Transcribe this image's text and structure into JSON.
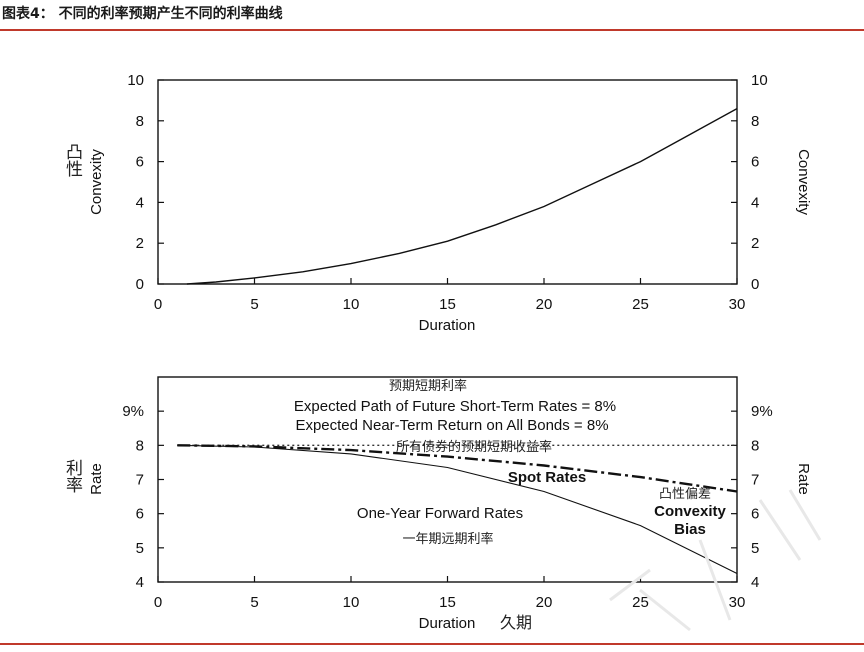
{
  "figure": {
    "title": "图表4：  不同的利率预期产生不同的利率曲线"
  },
  "chart_data": [
    {
      "type": "line",
      "xlabel": "Duration",
      "ylabel_cn": "凸性",
      "ylabel": "Convexity",
      "ylabel_right": "Convexity",
      "xlim": [
        0,
        30
      ],
      "ylim": [
        0,
        10
      ],
      "x_ticks": [
        0,
        5,
        10,
        15,
        20,
        25,
        30
      ],
      "y_ticks": [
        "0",
        "2",
        "4",
        "6",
        "8",
        "10"
      ],
      "y_ticks_right": [
        "0",
        "2",
        "4",
        "6",
        "8",
        "10"
      ],
      "series": [
        {
          "x": [
            1.5,
            3,
            5,
            7.5,
            10,
            12.5,
            15,
            17.5,
            20,
            22.5,
            25,
            27.5,
            30
          ],
          "y": [
            0.0,
            0.1,
            0.3,
            0.6,
            1.0,
            1.5,
            2.1,
            2.9,
            3.8,
            4.9,
            6.0,
            7.3,
            8.6
          ]
        }
      ]
    },
    {
      "type": "line",
      "xlabel": "Duration",
      "xlabel_cn": "久期",
      "ylabel_cn": "利率",
      "ylabel": "Rate",
      "ylabel_right": "Rate",
      "xlim": [
        0,
        30
      ],
      "ylim": [
        4,
        10
      ],
      "x_ticks": [
        0,
        5,
        10,
        15,
        20,
        25,
        30
      ],
      "y_ticks": [
        "4",
        "5",
        "6",
        "7",
        "8",
        "9%"
      ],
      "y_ticks_right": [
        "4",
        "5",
        "6",
        "7",
        "8",
        "9%"
      ],
      "series": [
        {
          "name": "Expected Path of Future Short-Term Rates = 8%",
          "style": "dotted",
          "x": [
            1,
            30
          ],
          "y": [
            8.0,
            8.0
          ]
        },
        {
          "name": "Spot Rates",
          "style": "dashed",
          "x": [
            1,
            5,
            10,
            15,
            20,
            25,
            30
          ],
          "y": [
            8.0,
            7.97,
            7.86,
            7.67,
            7.41,
            7.07,
            6.65
          ]
        },
        {
          "name": "One-Year Forward Rates",
          "style": "solid",
          "x": [
            1,
            5,
            10,
            15,
            20,
            25,
            30
          ],
          "y": [
            8.0,
            7.95,
            7.75,
            7.35,
            6.65,
            5.65,
            4.25
          ]
        }
      ],
      "annotations": {
        "cn_short_term": "预期短期利率",
        "expected_path": "Expected Path of Future Short-Term Rates = 8%",
        "expected_return": "Expected Near-Term Return on All Bonds = 8%",
        "cn_all_bonds": "所有债券的预期短期收益率",
        "spot_rates": "Spot Rates",
        "cn_convexity_bias": "凸性偏差",
        "convexity": "Convexity",
        "bias": "Bias",
        "forward_rates": "One-Year Forward Rates",
        "cn_forward": "一年期远期利率"
      }
    }
  ]
}
